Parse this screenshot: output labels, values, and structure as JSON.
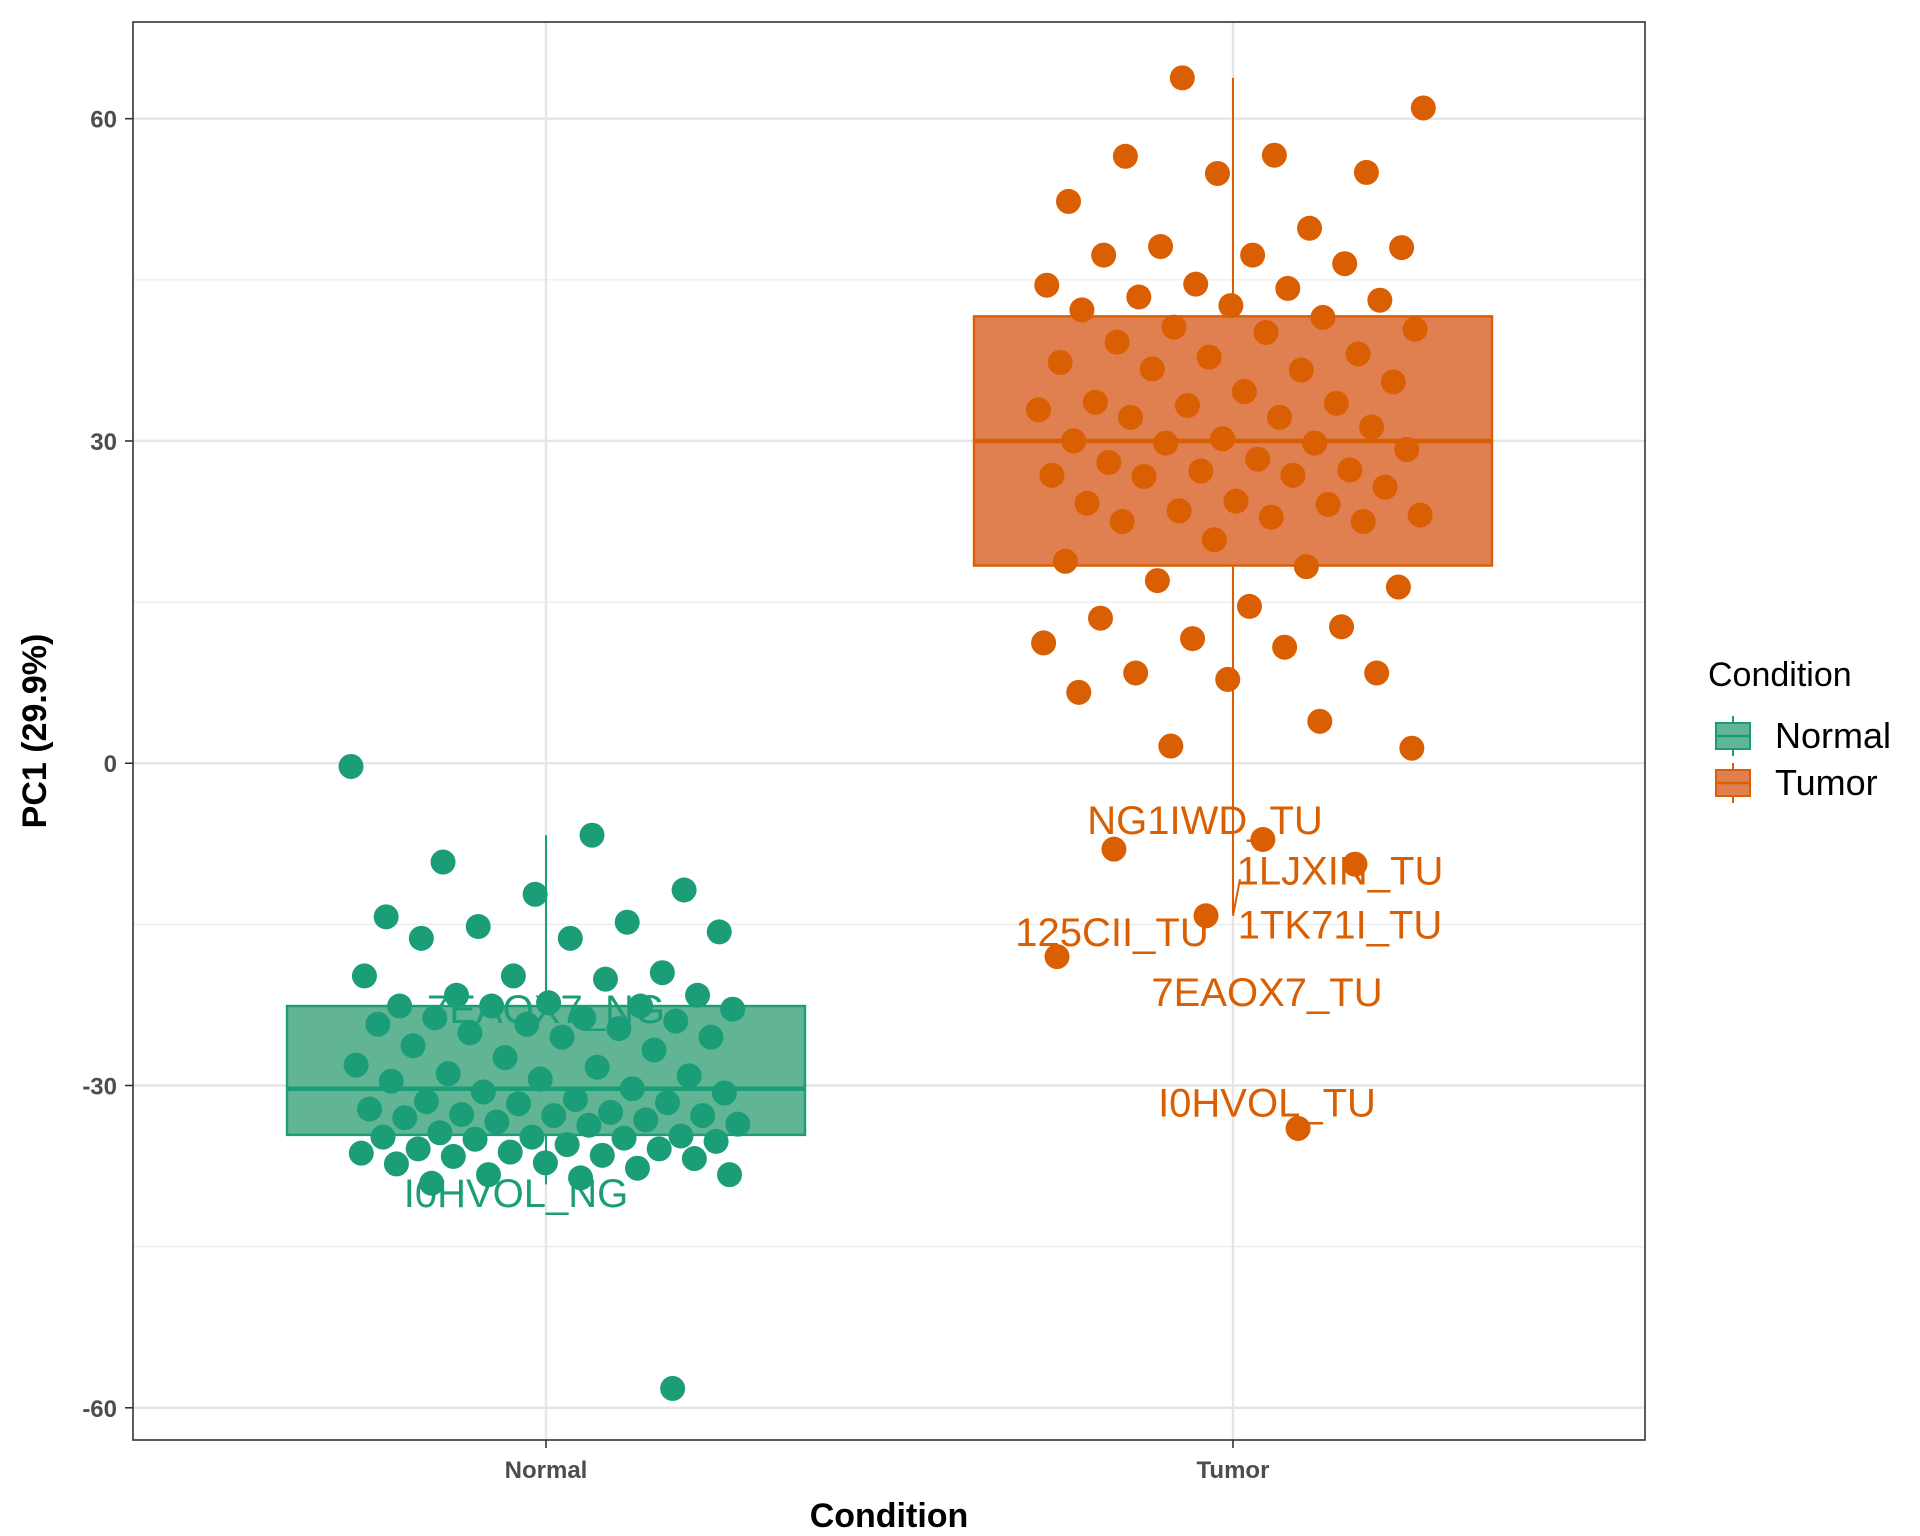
{
  "chart_data": {
    "type": "box",
    "xlabel": "Condition",
    "ylabel": "PC1 (29.9%)",
    "categories": [
      "Normal",
      "Tumor"
    ],
    "ylim": [
      -63,
      69
    ],
    "yticks": [
      -60,
      -30,
      0,
      30,
      60
    ],
    "grid": true,
    "legend": {
      "title": "Condition",
      "position": "right",
      "entries": [
        "Normal",
        "Tumor"
      ]
    },
    "colors": {
      "Normal": "#1b9e77",
      "Normal_fill": "#62b594",
      "Tumor": "#d95f02",
      "Tumor_fill": "#e07f50"
    },
    "boxes": [
      {
        "category": "Normal",
        "q1": -34.6,
        "median": -30.3,
        "q3": -22.6,
        "whisker_low": -39.2,
        "whisker_high": -6.7
      },
      {
        "category": "Tumor",
        "q1": 18.4,
        "median": 30.0,
        "q3": 41.6,
        "whisker_low": -14.0,
        "whisker_high": 63.8
      }
    ],
    "points": [
      {
        "category": "Normal",
        "values": [
          -0.3,
          -6.7,
          -9.2,
          -11.8,
          -12.2,
          -14.3,
          -14.8,
          -15.2,
          -15.7,
          -16.3,
          -16.3,
          -19.5,
          -19.8,
          -19.8,
          -20.1,
          -21.6,
          -21.6,
          -22.3,
          -22.6,
          -22.6,
          -22.6,
          -22.9,
          -23.7,
          -23.7,
          -24.0,
          -24.3,
          -24.3,
          -24.7,
          -25.1,
          -25.5,
          -25.5,
          -26.3,
          -26.7,
          -27.4,
          -28.1,
          -28.3,
          -28.9,
          -29.1,
          -29.4,
          -29.6,
          -30.3,
          -30.6,
          -30.7,
          -31.3,
          -31.5,
          -31.6,
          -31.7,
          -32.2,
          -32.5,
          -32.7,
          -32.8,
          -32.8,
          -33.0,
          -33.2,
          -33.4,
          -33.6,
          -33.7,
          -34.4,
          -34.7,
          -34.8,
          -34.8,
          -34.9,
          -35.0,
          -35.2,
          -35.5,
          -35.9,
          -35.9,
          -36.2,
          -36.3,
          -36.5,
          -36.6,
          -36.8,
          -37.2,
          -37.3,
          -37.7,
          -38.3,
          -38.3,
          -38.6,
          -39.1,
          -58.2
        ]
      },
      {
        "category": "Tumor",
        "values": [
          63.8,
          61.0,
          56.6,
          56.5,
          55.0,
          54.9,
          52.3,
          49.8,
          48.1,
          48.0,
          47.3,
          47.3,
          46.5,
          44.6,
          44.5,
          44.2,
          43.4,
          43.1,
          42.6,
          42.2,
          41.5,
          40.6,
          40.4,
          40.1,
          39.2,
          38.1,
          37.8,
          37.3,
          36.6,
          36.7,
          35.5,
          34.6,
          33.6,
          33.5,
          33.3,
          32.9,
          32.2,
          32.2,
          31.3,
          30.2,
          30.0,
          29.8,
          29.8,
          29.2,
          28.3,
          28.0,
          27.3,
          27.2,
          26.8,
          26.8,
          26.7,
          25.7,
          24.4,
          24.2,
          24.1,
          23.5,
          23.1,
          22.9,
          22.5,
          22.5,
          20.8,
          18.8,
          18.3,
          17.0,
          16.4,
          14.6,
          13.5,
          12.7,
          11.6,
          11.2,
          10.8,
          8.4,
          8.4,
          7.8,
          6.6,
          3.9,
          1.6,
          1.4,
          -7.1,
          -8.0,
          -9.4,
          -14.2,
          -18.0,
          -34.0
        ]
      }
    ],
    "annotations": [
      {
        "category": "Normal",
        "label": "7EAOX7_NG",
        "y": -22.9,
        "point_y": -22.3
      },
      {
        "category": "Normal",
        "label": "I0HVOL_NG",
        "y": -40.0,
        "point_y": -38.3
      },
      {
        "category": "Tumor",
        "label": "NG1IWD_TU",
        "y": -5.3,
        "point_y": -7.1
      },
      {
        "category": "Tumor",
        "label": "1LJXIN_TU",
        "y": -10.0,
        "point_y": -9.4
      },
      {
        "category": "Tumor",
        "label": "1TK71I_TU",
        "y": -15.0,
        "point_y": -14.0
      },
      {
        "category": "Tumor",
        "label": "125CII_TU",
        "y": -15.7,
        "point_y": -14.2
      },
      {
        "category": "Tumor",
        "label": "7EAOX7_TU",
        "y": -21.3,
        "point_y": -18.0
      },
      {
        "category": "Tumor",
        "label": "I0HVOL_TU",
        "y": -31.6,
        "point_y": -34.0
      }
    ]
  }
}
